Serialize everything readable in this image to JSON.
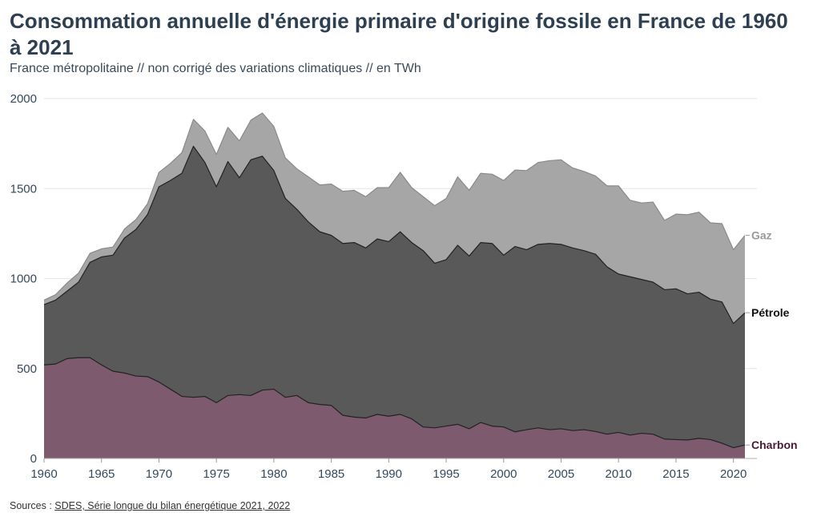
{
  "header": {
    "title": "Consommation annuelle d'énergie primaire d'origine fossile en France de 1960 à 2021",
    "subtitle": "France métropolitaine // non corrigé des variations climatiques // en TWh"
  },
  "footer": {
    "source_prefix": "Sources : ",
    "source_link": "SDES, Série longue du bilan énergétique 2021, 2022"
  },
  "chart_data": {
    "type": "area",
    "stacked": true,
    "x": [
      1960,
      1961,
      1962,
      1963,
      1964,
      1965,
      1966,
      1967,
      1968,
      1969,
      1970,
      1971,
      1972,
      1973,
      1974,
      1975,
      1976,
      1977,
      1978,
      1979,
      1980,
      1981,
      1982,
      1983,
      1984,
      1985,
      1986,
      1987,
      1988,
      1989,
      1990,
      1991,
      1992,
      1993,
      1994,
      1995,
      1996,
      1997,
      1998,
      1999,
      2000,
      2001,
      2002,
      2003,
      2004,
      2005,
      2006,
      2007,
      2008,
      2009,
      2010,
      2011,
      2012,
      2013,
      2014,
      2015,
      2016,
      2017,
      2018,
      2019,
      2020,
      2021
    ],
    "series": [
      {
        "name": "Charbon",
        "color": "#7e5a6e",
        "label_color": "#4a1a35",
        "values": [
          520,
          525,
          555,
          560,
          560,
          520,
          485,
          475,
          458,
          455,
          425,
          385,
          345,
          340,
          345,
          310,
          350,
          355,
          350,
          380,
          385,
          340,
          350,
          310,
          300,
          295,
          240,
          230,
          225,
          245,
          235,
          245,
          220,
          175,
          170,
          180,
          190,
          165,
          200,
          180,
          175,
          148,
          160,
          170,
          160,
          165,
          155,
          160,
          150,
          135,
          145,
          130,
          140,
          135,
          108,
          105,
          103,
          112,
          105,
          85,
          60,
          75
        ]
      },
      {
        "name": "Pétrole",
        "color": "#595959",
        "label_color": "#111111",
        "values": [
          335,
          355,
          375,
          420,
          530,
          600,
          645,
          750,
          815,
          900,
          1085,
          1160,
          1240,
          1395,
          1300,
          1200,
          1300,
          1205,
          1310,
          1300,
          1215,
          1105,
          1035,
          1005,
          960,
          945,
          955,
          970,
          945,
          975,
          970,
          1015,
          980,
          980,
          915,
          925,
          995,
          960,
          1000,
          1015,
          955,
          1030,
          1000,
          1020,
          1035,
          1025,
          1015,
          995,
          985,
          930,
          880,
          880,
          855,
          845,
          830,
          838,
          812,
          812,
          780,
          785,
          690,
          735
        ]
      },
      {
        "name": "Gaz",
        "color": "#a6a6a6",
        "label_color": "#999999",
        "values": [
          25,
          30,
          45,
          50,
          50,
          45,
          45,
          50,
          55,
          60,
          80,
          95,
          115,
          150,
          175,
          180,
          190,
          205,
          220,
          240,
          245,
          225,
          225,
          250,
          260,
          285,
          290,
          290,
          285,
          285,
          300,
          330,
          305,
          300,
          320,
          340,
          380,
          365,
          385,
          385,
          415,
          425,
          440,
          455,
          460,
          470,
          445,
          440,
          435,
          450,
          490,
          425,
          425,
          445,
          385,
          415,
          440,
          445,
          425,
          435,
          410,
          430
        ]
      }
    ],
    "totals_by_year": "stacked",
    "xlim": [
      1960,
      2021
    ],
    "ylim": [
      0,
      2000
    ],
    "x_ticks": [
      "1960",
      "1965",
      "1970",
      "1975",
      "1980",
      "1985",
      "1990",
      "1995",
      "2000",
      "2005",
      "2010",
      "2015",
      "2020"
    ],
    "y_ticks": [
      "0",
      "500",
      "1000",
      "1500",
      "2000"
    ],
    "grid": true,
    "legend": "end-of-series labels (right)"
  }
}
